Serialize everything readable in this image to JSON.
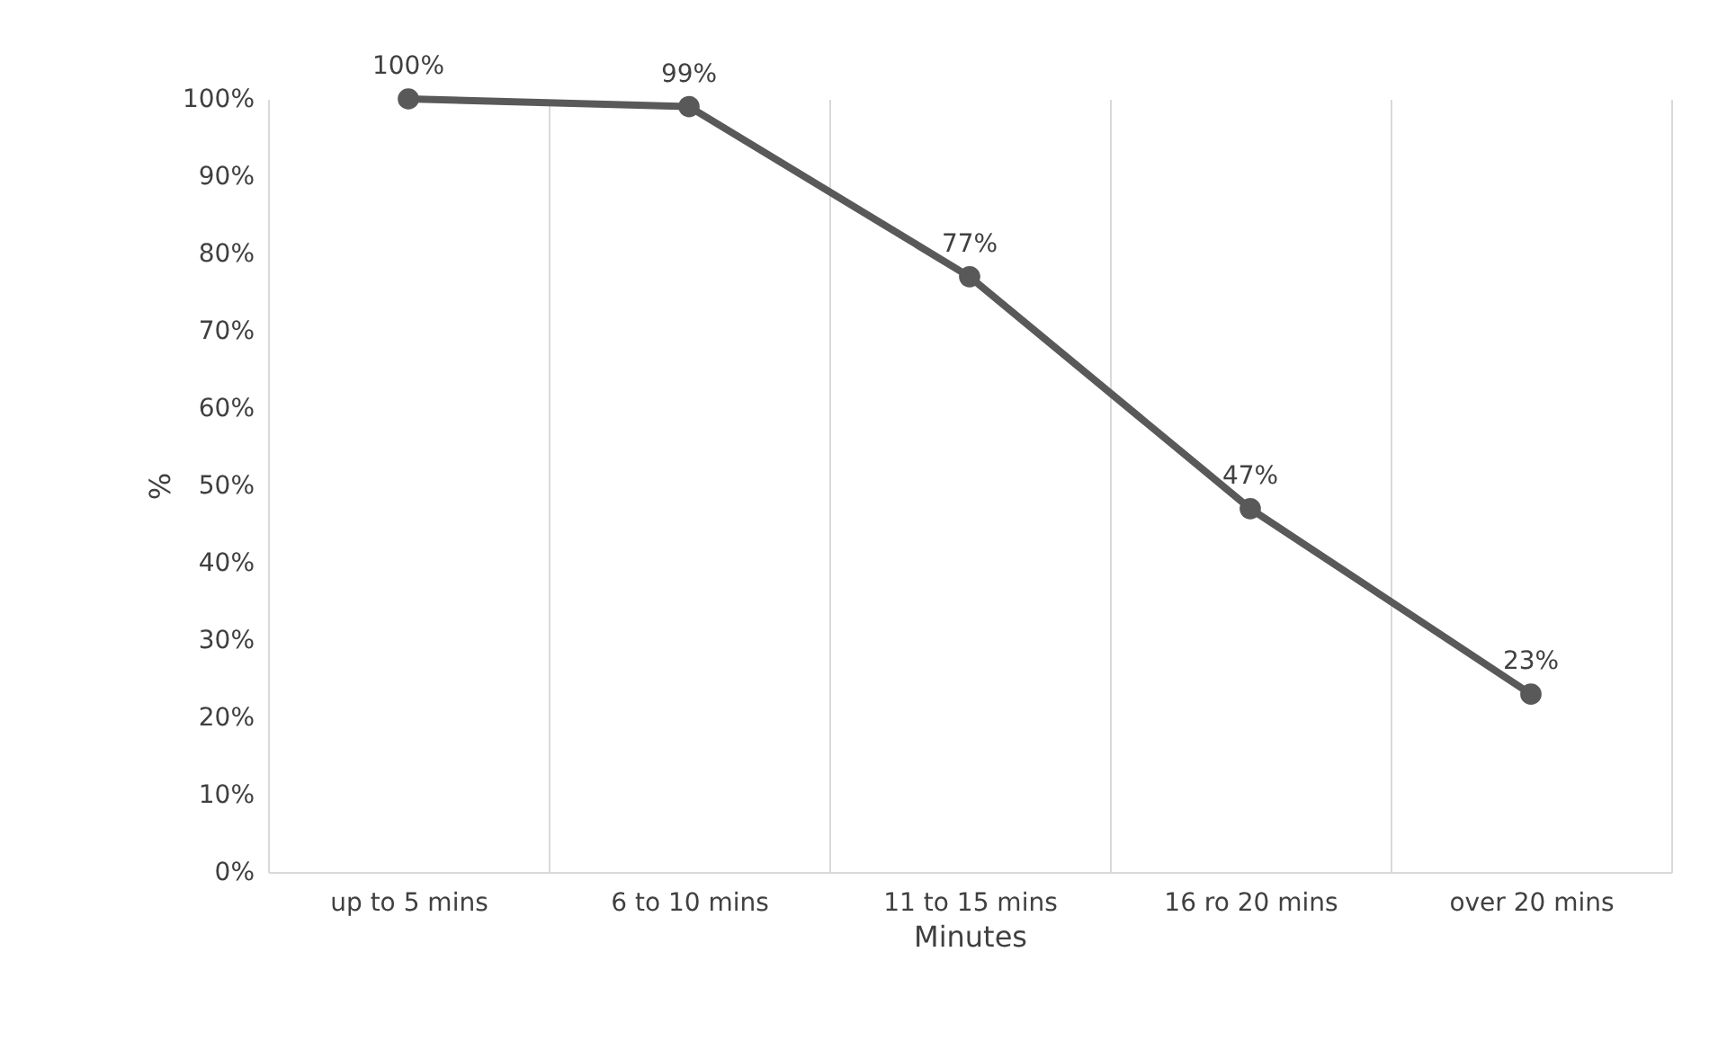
{
  "chart_data": {
    "type": "line",
    "xlabel": "Minutes",
    "ylabel": "%",
    "categories": [
      "up to 5 mins",
      "6 to 10 mins",
      "11 to 15 mins",
      "16 ro 20 mins",
      "over 20 mins"
    ],
    "series": [
      {
        "color": "#595959",
        "values": [
          100,
          99,
          77,
          47,
          23
        ],
        "value_labels": [
          "100%",
          "99%",
          "77%",
          "47%",
          "23%"
        ]
      }
    ],
    "ylim": [
      0,
      100
    ],
    "yticks": [
      {
        "value": 0,
        "label": "0%"
      },
      {
        "value": 10,
        "label": "10%"
      },
      {
        "value": 20,
        "label": "20%"
      },
      {
        "value": 30,
        "label": "30%"
      },
      {
        "value": 40,
        "label": "40%"
      },
      {
        "value": 50,
        "label": "50%"
      },
      {
        "value": 60,
        "label": "60%"
      },
      {
        "value": 70,
        "label": "70%"
      },
      {
        "value": 80,
        "label": "80%"
      },
      {
        "value": 90,
        "label": "90%"
      },
      {
        "value": 100,
        "label": "100%"
      }
    ],
    "grid": "x",
    "marker": "circle",
    "line_style": "solid"
  }
}
